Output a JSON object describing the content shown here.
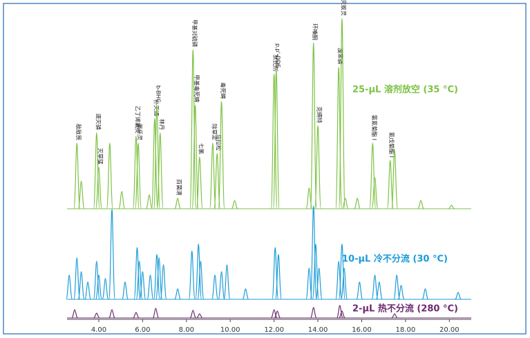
{
  "chart_data": {
    "type": "chromatogram",
    "xlim": [
      2.55,
      21
    ],
    "xticks": [
      {
        "value": 4,
        "label": "4.00"
      },
      {
        "value": 6,
        "label": "6.00"
      },
      {
        "value": 8,
        "label": "8.00"
      },
      {
        "value": 10,
        "label": "10.00"
      },
      {
        "value": 12,
        "label": "12.00"
      },
      {
        "value": 14,
        "label": "14.00"
      },
      {
        "value": 16,
        "label": "16.00"
      },
      {
        "value": 18,
        "label": "18.00"
      },
      {
        "value": 20,
        "label": "20.00"
      }
    ],
    "series": [
      {
        "name": "25-μL 溶剂放空 (35 °C)",
        "color": "#7dc243",
        "x": [
          3.0,
          3.2,
          3.9,
          4.0,
          4.5,
          5.05,
          5.7,
          5.8,
          6.3,
          6.55,
          6.65,
          6.8,
          7.6,
          8.3,
          8.4,
          8.6,
          9.2,
          9.4,
          9.6,
          10.2,
          12.0,
          12.1,
          13.6,
          13.8,
          14.0,
          14.95,
          15.1,
          15.25,
          15.8,
          16.5,
          16.6,
          17.3,
          17.5,
          18.7,
          20.1
        ],
        "values": [
          95,
          40,
          110,
          60,
          95,
          25,
          105,
          95,
          20,
          130,
          150,
          110,
          15,
          230,
          150,
          75,
          95,
          80,
          155,
          12,
          195,
          200,
          30,
          240,
          120,
          205,
          275,
          15,
          15,
          95,
          45,
          70,
          85,
          12,
          5
        ],
        "labels": [
          "敌敌畏",
          null,
          "速灭磷",
          "灭草猛",
          null,
          null,
          "乙丁烯氟灵",
          "氟乐灵",
          null,
          "扑灭通",
          "b-BHC",
          "林丹",
          "百菌清",
          "甲基对硫磷",
          "甲基毒死蜱",
          "七氯",
          "除草定",
          "马拉松",
          "毒死蜱",
          null,
          "狄氏剂",
          "p,p'-DDE",
          null,
          "环嗪酮",
          "克螨特",
          "溴苯磷",
          "灭蚁灵",
          null,
          null,
          "氯氰菊酯 I",
          null,
          "氰戊菊酯 I",
          null,
          null,
          null
        ]
      },
      {
        "name": "10-μL 冷不分流 (30 °C)",
        "color": "#1b9bd7",
        "x": [
          2.65,
          3.0,
          3.2,
          3.5,
          3.9,
          4.0,
          4.3,
          4.6,
          5.2,
          5.75,
          5.85,
          6.0,
          6.35,
          6.65,
          6.75,
          6.95,
          7.6,
          8.25,
          8.55,
          8.65,
          9.3,
          9.6,
          9.85,
          10.7,
          12.05,
          12.2,
          13.6,
          13.8,
          13.9,
          14.05,
          14.95,
          15.1,
          15.2,
          15.9,
          16.6,
          16.8,
          17.6,
          17.8,
          18.9,
          20.4
        ],
        "values": [
          35,
          60,
          40,
          25,
          55,
          35,
          30,
          130,
          25,
          75,
          55,
          40,
          35,
          65,
          60,
          50,
          15,
          70,
          80,
          55,
          35,
          40,
          50,
          15,
          75,
          65,
          45,
          135,
          80,
          45,
          55,
          80,
          45,
          25,
          35,
          25,
          35,
          20,
          15,
          10
        ]
      },
      {
        "name": "2-μL 热不分流 (280 °C)",
        "color": "#6b2a6e",
        "x": [
          2.9,
          3.9,
          4.6,
          5.7,
          6.6,
          8.3,
          8.6,
          12.0,
          12.15,
          13.8,
          15.0,
          15.1,
          17.5
        ],
        "values": [
          12,
          7,
          12,
          8,
          14,
          11,
          6,
          12,
          10,
          15,
          18,
          10,
          6
        ]
      }
    ]
  }
}
